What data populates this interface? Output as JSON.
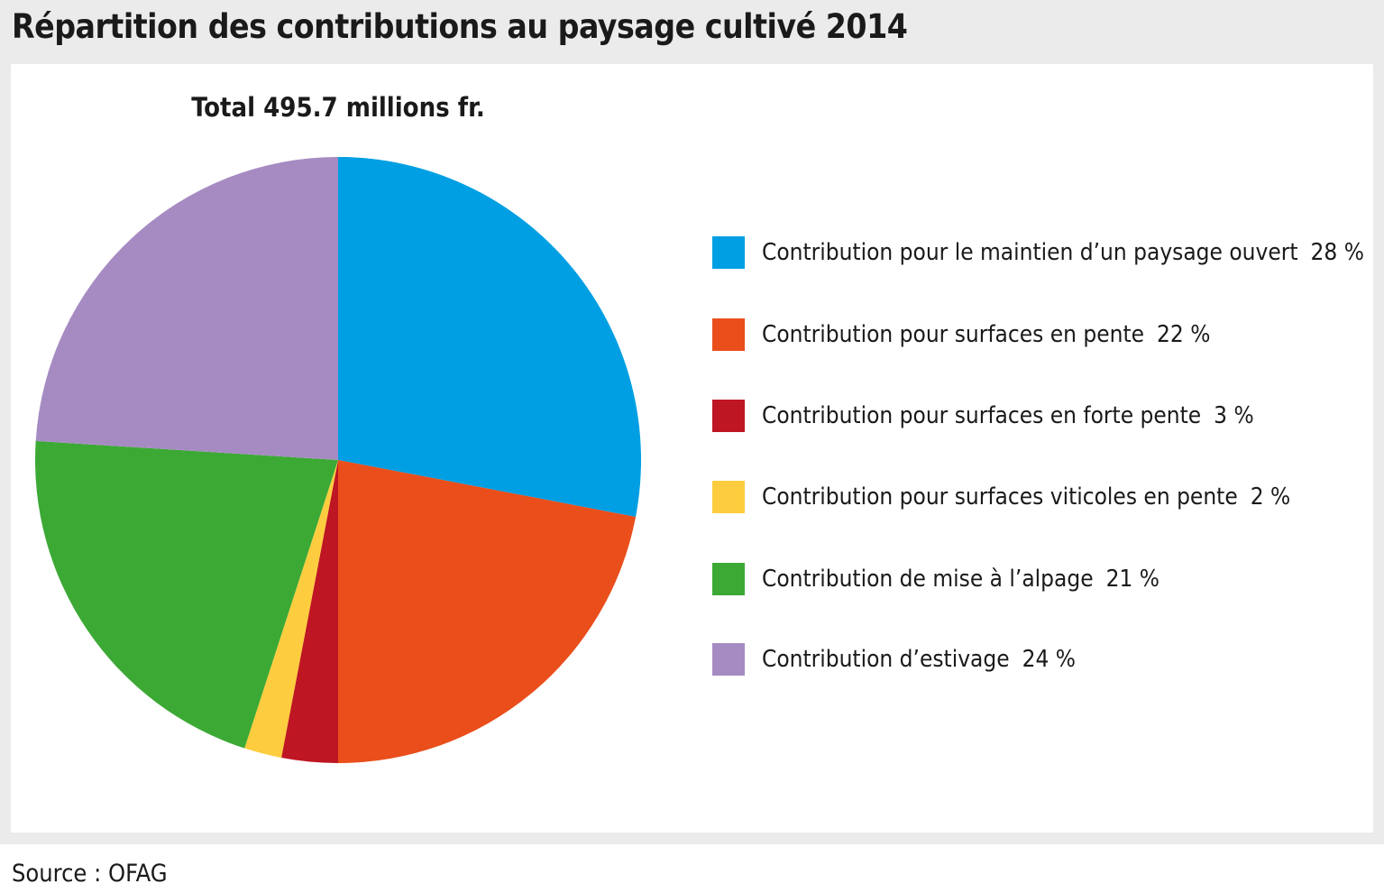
{
  "title": "Répartition des contributions au paysage cultivé 2014",
  "source": "Source : OFAG",
  "chart_data": {
    "type": "pie",
    "title": "Total 495.7 millions fr.",
    "unit": "%",
    "slices": [
      {
        "label": "Contribution pour le maintien d’un paysage ouvert",
        "value": 28,
        "value_label": "28 %",
        "color": "#009fe3"
      },
      {
        "label": "Contribution pour surfaces en pente",
        "value": 22,
        "value_label": "22 %",
        "color": "#e94e1b"
      },
      {
        "label": "Contribution pour surfaces en forte pente",
        "value": 3,
        "value_label": "3 %",
        "color": "#be1622"
      },
      {
        "label": "Contribution pour surfaces viticoles en pente",
        "value": 2,
        "value_label": "2 %",
        "color": "#fecd3f"
      },
      {
        "label": "Contribution de mise à l’alpage",
        "value": 21,
        "value_label": "21 %",
        "color": "#3ca935"
      },
      {
        "label": "Contribution d’estivage",
        "value": 24,
        "value_label": "24 %",
        "color": "#a68bc2"
      }
    ],
    "legend_position": "right"
  }
}
